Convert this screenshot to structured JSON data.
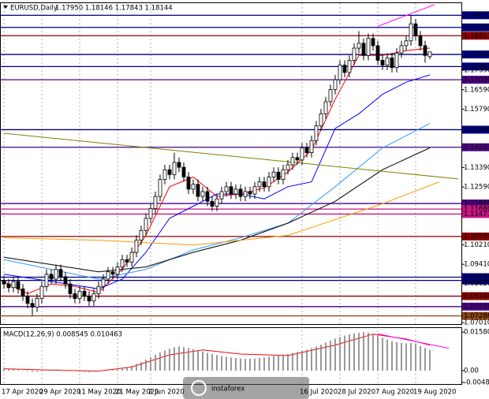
{
  "chart_data": [
    {
      "type": "candlestick",
      "title": "EURUSD,Daily",
      "subtitle": "1.17950 1.18146 1.17843 1.18144",
      "watermark": "instaforex",
      "categories": [
        "17 Apr 2020",
        null,
        null,
        null,
        null,
        null,
        null,
        null,
        "29 Apr 2020",
        null,
        null,
        null,
        null,
        null,
        null,
        null,
        "11 May 2020",
        null,
        null,
        null,
        null,
        null,
        null,
        null,
        "21 May 2020",
        null,
        null,
        null,
        null,
        null,
        null,
        "2 Jun 2020",
        null,
        null,
        null,
        null,
        null,
        null,
        null,
        null,
        null,
        null,
        null,
        null,
        null,
        null,
        null,
        null,
        null,
        null,
        null,
        null,
        null,
        null,
        null,
        null,
        null,
        null,
        null,
        null,
        null,
        null,
        null,
        "16 Jul 2020",
        null,
        null,
        null,
        null,
        null,
        null,
        null,
        "28 Jul 2020",
        null,
        null,
        null,
        null,
        null,
        null,
        null,
        "7 Aug 2020",
        null,
        null,
        null,
        null,
        null,
        null,
        null,
        "19 Aug 2020",
        null,
        null,
        null
      ],
      "open": [
        1.0875,
        1.086,
        1.0845,
        1.087,
        1.084,
        1.081,
        1.078,
        1.0765,
        1.08,
        1.085,
        1.09,
        1.088,
        1.092,
        1.089,
        1.086,
        1.082,
        1.08,
        1.083,
        1.081,
        1.079,
        1.082,
        1.085,
        1.088,
        1.091,
        1.09,
        1.093,
        1.096,
        1.095,
        1.099,
        1.104,
        1.108,
        1.113,
        1.117,
        1.122,
        1.129,
        1.133,
        1.131,
        1.136,
        1.134,
        1.13,
        1.125,
        1.127,
        1.122,
        1.124,
        1.12,
        1.118,
        1.121,
        1.124,
        1.126,
        1.123,
        1.125,
        1.122,
        1.124,
        1.123,
        1.126,
        1.128,
        1.126,
        1.13,
        1.132,
        1.129,
        1.133,
        1.135,
        1.138,
        1.137,
        1.142,
        1.14,
        1.145,
        1.151,
        1.156,
        1.161,
        1.166,
        1.17,
        1.176,
        1.173,
        1.178,
        1.183,
        1.185,
        1.18,
        1.187,
        1.184,
        1.178,
        1.176,
        1.179,
        1.175,
        1.181,
        1.184,
        1.186,
        1.193,
        1.188,
        1.184,
        1.1795
      ],
      "high": [
        1.0895,
        1.088,
        1.089,
        1.089,
        1.086,
        1.083,
        1.08,
        1.082,
        1.087,
        1.092,
        1.092,
        1.094,
        1.094,
        1.091,
        1.088,
        1.084,
        1.085,
        1.085,
        1.083,
        1.084,
        1.087,
        1.09,
        1.093,
        1.093,
        1.095,
        1.098,
        1.098,
        1.101,
        1.106,
        1.11,
        1.115,
        1.119,
        1.124,
        1.131,
        1.135,
        1.135,
        1.14,
        1.138,
        1.136,
        1.132,
        1.129,
        1.129,
        1.126,
        1.126,
        1.122,
        1.123,
        1.126,
        1.128,
        1.128,
        1.127,
        1.127,
        1.126,
        1.126,
        1.128,
        1.13,
        1.13,
        1.132,
        1.134,
        1.134,
        1.135,
        1.137,
        1.14,
        1.14,
        1.144,
        1.144,
        1.147,
        1.153,
        1.158,
        1.163,
        1.168,
        1.172,
        1.178,
        1.178,
        1.18,
        1.185,
        1.19,
        1.187,
        1.189,
        1.189,
        1.186,
        1.18,
        1.181,
        1.181,
        1.183,
        1.186,
        1.188,
        1.1966,
        1.195,
        1.19,
        1.186,
        1.18146
      ],
      "low": [
        1.084,
        1.0825,
        1.0825,
        1.082,
        1.079,
        1.076,
        1.0728,
        1.0745,
        1.078,
        1.083,
        1.086,
        1.086,
        1.087,
        1.084,
        1.08,
        1.078,
        1.078,
        1.079,
        1.077,
        1.077,
        1.08,
        1.083,
        1.086,
        1.088,
        1.088,
        1.091,
        1.093,
        1.093,
        1.097,
        1.102,
        1.106,
        1.111,
        1.115,
        1.12,
        1.127,
        1.129,
        1.129,
        1.132,
        1.128,
        1.123,
        1.123,
        1.12,
        1.12,
        1.118,
        1.116,
        1.116,
        1.119,
        1.122,
        1.121,
        1.121,
        1.12,
        1.12,
        1.121,
        1.121,
        1.124,
        1.124,
        1.124,
        1.128,
        1.127,
        1.127,
        1.131,
        1.133,
        1.135,
        1.135,
        1.138,
        1.138,
        1.143,
        1.149,
        1.154,
        1.159,
        1.164,
        1.168,
        1.171,
        1.171,
        1.176,
        1.181,
        1.178,
        1.178,
        1.182,
        1.176,
        1.174,
        1.174,
        1.173,
        1.173,
        1.179,
        1.182,
        1.184,
        1.186,
        1.182,
        1.177,
        1.17843
      ],
      "close": [
        1.086,
        1.0845,
        1.087,
        1.084,
        1.081,
        1.078,
        1.0765,
        1.08,
        1.085,
        1.09,
        1.088,
        1.092,
        1.089,
        1.086,
        1.082,
        1.08,
        1.083,
        1.081,
        1.079,
        1.082,
        1.085,
        1.088,
        1.091,
        1.09,
        1.093,
        1.096,
        1.095,
        1.099,
        1.104,
        1.108,
        1.113,
        1.117,
        1.122,
        1.129,
        1.133,
        1.131,
        1.136,
        1.134,
        1.13,
        1.125,
        1.127,
        1.122,
        1.124,
        1.12,
        1.118,
        1.121,
        1.124,
        1.126,
        1.123,
        1.125,
        1.122,
        1.124,
        1.123,
        1.126,
        1.128,
        1.126,
        1.13,
        1.132,
        1.129,
        1.133,
        1.135,
        1.138,
        1.137,
        1.142,
        1.14,
        1.145,
        1.151,
        1.156,
        1.161,
        1.166,
        1.17,
        1.176,
        1.173,
        1.178,
        1.183,
        1.185,
        1.18,
        1.187,
        1.184,
        1.178,
        1.176,
        1.179,
        1.175,
        1.181,
        1.184,
        1.186,
        1.193,
        1.188,
        1.184,
        1.18,
        1.18144
      ],
      "lines": [
        {
          "color": "#ff0000",
          "x": [
            0,
            5,
            10,
            15,
            20,
            25,
            30,
            35,
            40,
            45,
            50,
            55,
            60,
            65,
            70,
            75,
            80,
            85,
            90
          ],
          "values": [
            1.087,
            1.082,
            1.086,
            1.085,
            1.0825,
            1.092,
            1.106,
            1.126,
            1.13,
            1.122,
            1.123,
            1.1255,
            1.132,
            1.141,
            1.162,
            1.18,
            1.18,
            1.182,
            1.183
          ]
        },
        {
          "color": "#0000ff",
          "x": [
            0,
            10,
            20,
            25,
            30,
            35,
            40,
            45,
            50,
            55,
            60,
            65,
            70,
            75,
            80,
            85,
            90
          ],
          "values": [
            1.09,
            1.087,
            1.084,
            1.088,
            1.099,
            1.113,
            1.118,
            1.123,
            1.123,
            1.121,
            1.126,
            1.128,
            1.15,
            1.156,
            1.164,
            1.169,
            1.172
          ]
        },
        {
          "color": "#3399ff",
          "x": [
            0,
            20,
            30,
            40,
            50,
            60,
            70,
            80,
            90
          ],
          "values": [
            1.096,
            1.088,
            1.092,
            1.1,
            1.105,
            1.111,
            1.126,
            1.142,
            1.152
          ]
        },
        {
          "color": "#000000",
          "x": [
            0,
            20,
            30,
            40,
            50,
            60,
            70,
            80,
            90
          ],
          "values": [
            1.097,
            1.091,
            1.093,
            1.099,
            1.104,
            1.111,
            1.12,
            1.133,
            1.142
          ]
        },
        {
          "color": "#ff9900",
          "x": [
            0,
            20,
            40,
            60,
            80,
            92
          ],
          "values": [
            1.105,
            1.104,
            1.102,
            1.106,
            1.119,
            1.128
          ]
        },
        {
          "color": "#808000",
          "x": [
            0,
            96
          ],
          "values": [
            1.148,
            1.1292
          ]
        },
        {
          "color": "#ff00ff",
          "x": [
            79,
            91
          ],
          "values": [
            1.192,
            1.2009
          ]
        }
      ],
      "levels": [
        {
          "value": 1.19652,
          "color": "#000080"
        },
        {
          "value": 1.19152,
          "color": "#000080"
        },
        {
          "value": 1.18811,
          "color": "#8b0000"
        },
        {
          "value": 1.1804,
          "color": "#000080"
        },
        {
          "value": 1.17543,
          "color": "#000080"
        },
        {
          "value": 1.17,
          "color": "#4b0082"
        },
        {
          "value": 1.14946,
          "color": "#000080"
        },
        {
          "value": 1.14223,
          "color": "#4b0082"
        },
        {
          "value": 1.1191,
          "color": "#4b0082"
        },
        {
          "value": 1.1168,
          "color": "#c71585"
        },
        {
          "value": 1.11477,
          "color": "#c71585"
        },
        {
          "value": 1.10554,
          "color": "#8b0000"
        },
        {
          "value": 1.0888,
          "color": "#000080"
        },
        {
          "value": 1.08745,
          "color": "#000080"
        },
        {
          "value": 1.081,
          "color": "#8b0000"
        },
        {
          "value": 1.0767,
          "color": "#4b0082"
        },
        {
          "value": 1.07286,
          "color": "#8b4513"
        }
      ],
      "ylim": [
        1.0695,
        1.2015
      ],
      "yticks": [
        1.19652,
        1.19152,
        1.18811,
        {
          "value": 1.1804,
          "label": "1.18040"
        },
        1.17543,
        {
          "value": 1.1739,
          "label": "1.17390"
        },
        {
          "value": 1.17,
          "label": "1.17000"
        },
        {
          "value": 1.1659,
          "label": "1.16590"
        },
        {
          "value": 1.1579,
          "label": "1.15790"
        },
        1.14946,
        1.14223,
        {
          "value": 1.1339,
          "label": "1.13390"
        },
        {
          "value": 1.1259,
          "label": "1.12590"
        },
        {
          "value": 1.1191,
          "label": "1.11910"
        },
        {
          "value": 1.1168,
          "label": "1.11680"
        },
        1.11477,
        1.10554,
        {
          "value": 1.1021,
          "label": "1.10210"
        },
        {
          "value": 1.0941,
          "label": "1.09410"
        },
        {
          "value": 1.0888,
          "label": "1.08880"
        },
        1.08745,
        {
          "value": 1.0862,
          "label": "1.08620"
        },
        {
          "value": 1.081,
          "label": "1.08100"
        },
        {
          "value": 1.0767,
          "label": "1.07670"
        },
        1.07286,
        {
          "value": 1.0701,
          "label": "1.07010"
        }
      ]
    },
    {
      "type": "macd",
      "title": "MACD(12,26,9) 0.008545 0.010463",
      "color": "#808080",
      "values": [
        0.001,
        0.0008,
        0.0006,
        0.0003,
        0.0,
        -0.0003,
        -0.0005,
        -0.0004,
        -0.0001,
        0.0003,
        0.0005,
        0.0006,
        0.0004,
        0.0002,
        0.0,
        -0.0002,
        -0.0004,
        -0.0005,
        -0.0006,
        -0.0005,
        -0.0003,
        0.0,
        0.0003,
        0.0006,
        0.0009,
        0.0012,
        0.0015,
        0.002,
        0.0027,
        0.0035,
        0.0045,
        0.0055,
        0.0065,
        0.0075,
        0.0083,
        0.009,
        0.0096,
        0.0099,
        0.0097,
        0.0093,
        0.0089,
        0.0084,
        0.0079,
        0.0073,
        0.0068,
        0.0064,
        0.006,
        0.0057,
        0.0054,
        0.0052,
        0.005,
        0.0049,
        0.0049,
        0.005,
        0.0052,
        0.0054,
        0.0057,
        0.006,
        0.0063,
        0.0066,
        0.0069,
        0.0073,
        0.0077,
        0.0081,
        0.0086,
        0.0092,
        0.0099,
        0.0107,
        0.0115,
        0.0123,
        0.0131,
        0.0138,
        0.0144,
        0.0149,
        0.0153,
        0.0156,
        0.0158,
        0.0156,
        0.015,
        0.0143,
        0.0135,
        0.0128,
        0.0121,
        0.0117,
        0.0114,
        0.0112,
        0.0113,
        0.011,
        0.0101,
        0.0093,
        0.008545
      ],
      "lines": [
        {
          "color": "#ff0000",
          "x": [
            0,
            10,
            20,
            27,
            35,
            42,
            50,
            60,
            70,
            78,
            85,
            90
          ],
          "values": [
            0.0008,
            0.0002,
            -0.0002,
            0.0015,
            0.0065,
            0.0085,
            0.0068,
            0.0062,
            0.0105,
            0.015,
            0.013,
            0.010463
          ]
        },
        {
          "color": "#ff00ff",
          "x": [
            79,
            94
          ],
          "values": [
            0.0151,
            0.0092
          ]
        }
      ],
      "ylim": [
        -0.0055,
        0.0175
      ],
      "yticks": [
        0.015801,
        {
          "value": 0,
          "label": "0.00"
        },
        -0.004847
      ]
    }
  ]
}
